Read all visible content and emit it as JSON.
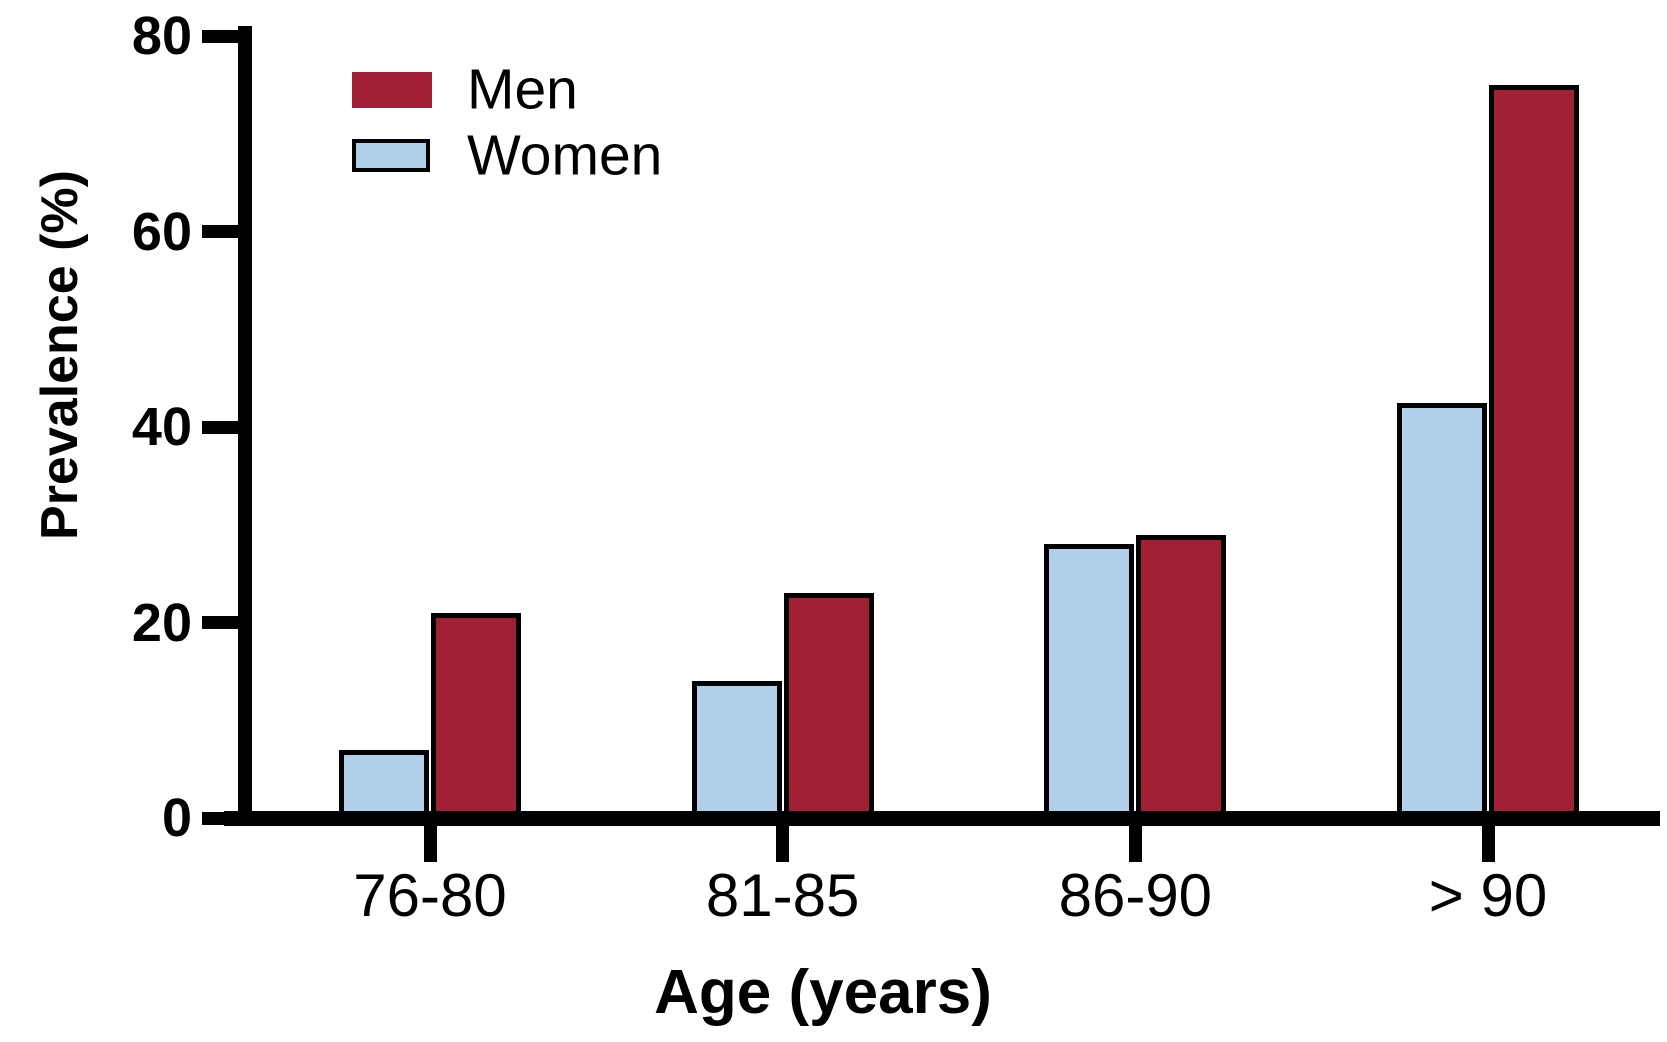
{
  "chart_data": {
    "type": "bar",
    "title": "",
    "xlabel": "Age (years)",
    "ylabel": "Prevalence (%)",
    "categories": [
      "76-80",
      "81-85",
      "86-90",
      "> 90"
    ],
    "series": [
      {
        "name": "Men",
        "color": "#A12035",
        "bar_border_color": "#000000",
        "legend_swatch_border": false,
        "values": [
          21,
          23,
          29,
          75
        ]
      },
      {
        "name": "Women",
        "color": "#AFCFEA",
        "bar_border_color": "#000000",
        "legend_swatch_border": true,
        "values": [
          7,
          14,
          28,
          42.5
        ]
      }
    ],
    "ylim": [
      0,
      80
    ],
    "yticks": [
      0,
      20,
      40,
      60,
      80
    ],
    "grid": false,
    "legend_position": "top-left",
    "axis_color": "#000000",
    "background_color": "#ffffff"
  }
}
